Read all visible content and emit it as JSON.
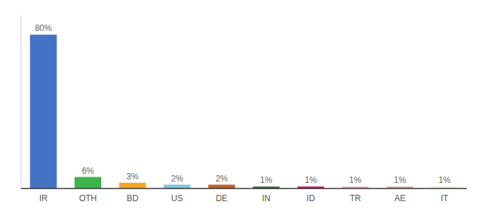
{
  "chart_data": {
    "type": "bar",
    "categories": [
      "IR",
      "OTH",
      "BD",
      "US",
      "DE",
      "IN",
      "ID",
      "TR",
      "AE",
      "IT"
    ],
    "values": [
      80,
      6,
      3,
      2,
      2,
      1,
      1,
      1,
      1,
      1
    ],
    "value_labels": [
      "80%",
      "6%",
      "3%",
      "2%",
      "2%",
      "1%",
      "1%",
      "1%",
      "1%",
      "1%"
    ],
    "colors": [
      "#4472c4",
      "#3db34a",
      "#f5a623",
      "#7ec8e3",
      "#c0612b",
      "#2d6e2d",
      "#e0006e",
      "#f5a0b5",
      "#e8a090",
      "#f5f0c8"
    ],
    "ylim": [
      0,
      90
    ],
    "grid": false,
    "data_labels": true,
    "tick_labels": "x"
  }
}
